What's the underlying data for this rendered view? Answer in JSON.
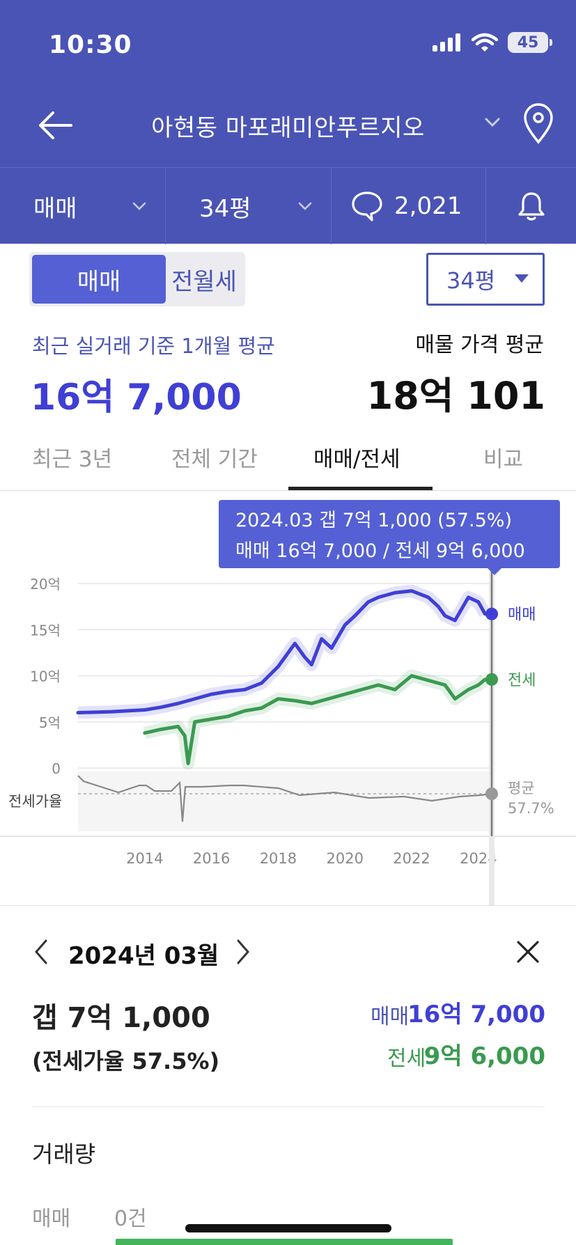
{
  "status": {
    "time": "10:30",
    "battery": "45"
  },
  "nav": {
    "title": "아현동 마포래미안푸르지오"
  },
  "filters": {
    "type": "매매",
    "size": "34평",
    "comments": "2,021"
  },
  "toggle": {
    "active": "매매",
    "inactive": "전월세"
  },
  "size_select": {
    "value": "34평"
  },
  "prices": {
    "avg_label": "최근 실거래 기준 1개월 평균",
    "avg_value": "16억 7,000",
    "listing_label": "매물 가격 평균",
    "listing_value": "18억 101"
  },
  "tabs": [
    {
      "label": "최근 3년"
    },
    {
      "label": "전체 기간"
    },
    {
      "label": "매매/전세"
    },
    {
      "label": "비교"
    }
  ],
  "tooltip": {
    "line1": "2024.03  갭 7억 1,000 (57.5%)",
    "line2": "매매 16억 7,000 / 전세 9억 6,000"
  },
  "chart_data": {
    "type": "line",
    "title": "",
    "x_ticks": [
      "2014",
      "2016",
      "2018",
      "2020",
      "2022",
      "2024"
    ],
    "y_ticks": [
      "0",
      "5억",
      "10억",
      "15억",
      "20억"
    ],
    "ylim": [
      0,
      20
    ],
    "series": [
      {
        "name": "매매",
        "color": "#3f3fd6",
        "x": [
          2012.0,
          2013.0,
          2014.0,
          2014.5,
          2015.0,
          2015.5,
          2016.0,
          2016.5,
          2017.0,
          2017.5,
          2018.0,
          2018.5,
          2018.8,
          2019.0,
          2019.3,
          2019.6,
          2020.0,
          2020.3,
          2020.7,
          2021.0,
          2021.5,
          2022.0,
          2022.5,
          2022.8,
          2023.0,
          2023.3,
          2023.7,
          2024.0,
          2024.2
        ],
        "y": [
          6.0,
          6.1,
          6.3,
          6.6,
          7.0,
          7.5,
          8.0,
          8.3,
          8.5,
          9.2,
          11.0,
          13.5,
          12.0,
          11.2,
          14.0,
          13.0,
          15.5,
          16.5,
          18.0,
          18.5,
          19.0,
          19.2,
          18.5,
          17.5,
          16.5,
          16.0,
          18.5,
          18.0,
          16.7
        ]
      },
      {
        "name": "전세",
        "color": "#3a9a50",
        "x": [
          2014.0,
          2014.5,
          2015.0,
          2015.2,
          2015.3,
          2015.5,
          2016.0,
          2016.5,
          2017.0,
          2017.5,
          2018.0,
          2018.5,
          2019.0,
          2019.5,
          2020.0,
          2020.5,
          2021.0,
          2021.5,
          2022.0,
          2022.5,
          2023.0,
          2023.3,
          2023.7,
          2024.0,
          2024.2
        ],
        "y": [
          3.8,
          4.2,
          4.5,
          3.5,
          0.5,
          5.0,
          5.3,
          5.6,
          6.2,
          6.5,
          7.5,
          7.3,
          7.0,
          7.5,
          8.0,
          8.5,
          9.0,
          8.5,
          10.0,
          9.5,
          9.0,
          7.5,
          8.5,
          9.0,
          9.6
        ]
      }
    ],
    "ratio_series": {
      "label": "전세가율",
      "avg_label": "평균",
      "avg_value": "57.7%"
    },
    "end_labels": {
      "sale": "매매",
      "jeonse": "전세"
    }
  },
  "detail": {
    "month": "2024년 03월",
    "gap": "갭 7억 1,000",
    "ratio": "(전세가율 57.5%)",
    "sale_label": "매매",
    "sale_value": "16억 7,000",
    "jeonse_label": "전세",
    "jeonse_value": "9억 6,000",
    "volume_title": "거래량",
    "volume_label": "매매",
    "volume_value": "0건"
  },
  "colors": {
    "header": "#4a54b5",
    "accent": "#5460d4",
    "sale": "#3f3fd6",
    "jeonse": "#3a9a50"
  }
}
